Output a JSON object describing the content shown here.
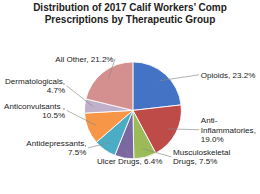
{
  "chart_data": {
    "type": "pie",
    "title": "Distribution of 2017 Calif Workers’ Comp\nPrescriptions by Therapeutic Group",
    "categories": [
      "Opioids, 23.2%",
      "Anti-\nInflammatories,\n19.0%",
      "Musculoskeletal\nDrugs, 7.5%",
      "Ulcer Drugs, 6.4%",
      "Antidepressants,\n7.5%",
      "Anticonvulsants ,\n10.5%",
      "Dermatologicals,\n4.7%",
      "All Other, 21.2%"
    ],
    "values": [
      23.2,
      19.0,
      7.5,
      6.4,
      7.5,
      10.5,
      4.7,
      21.2
    ],
    "colors": [
      "#4472C4",
      "#BE4B48",
      "#9BBB59",
      "#7B68A0",
      "#4BACC6",
      "#F79646",
      "#C0B0CC",
      "#D4908E"
    ]
  }
}
